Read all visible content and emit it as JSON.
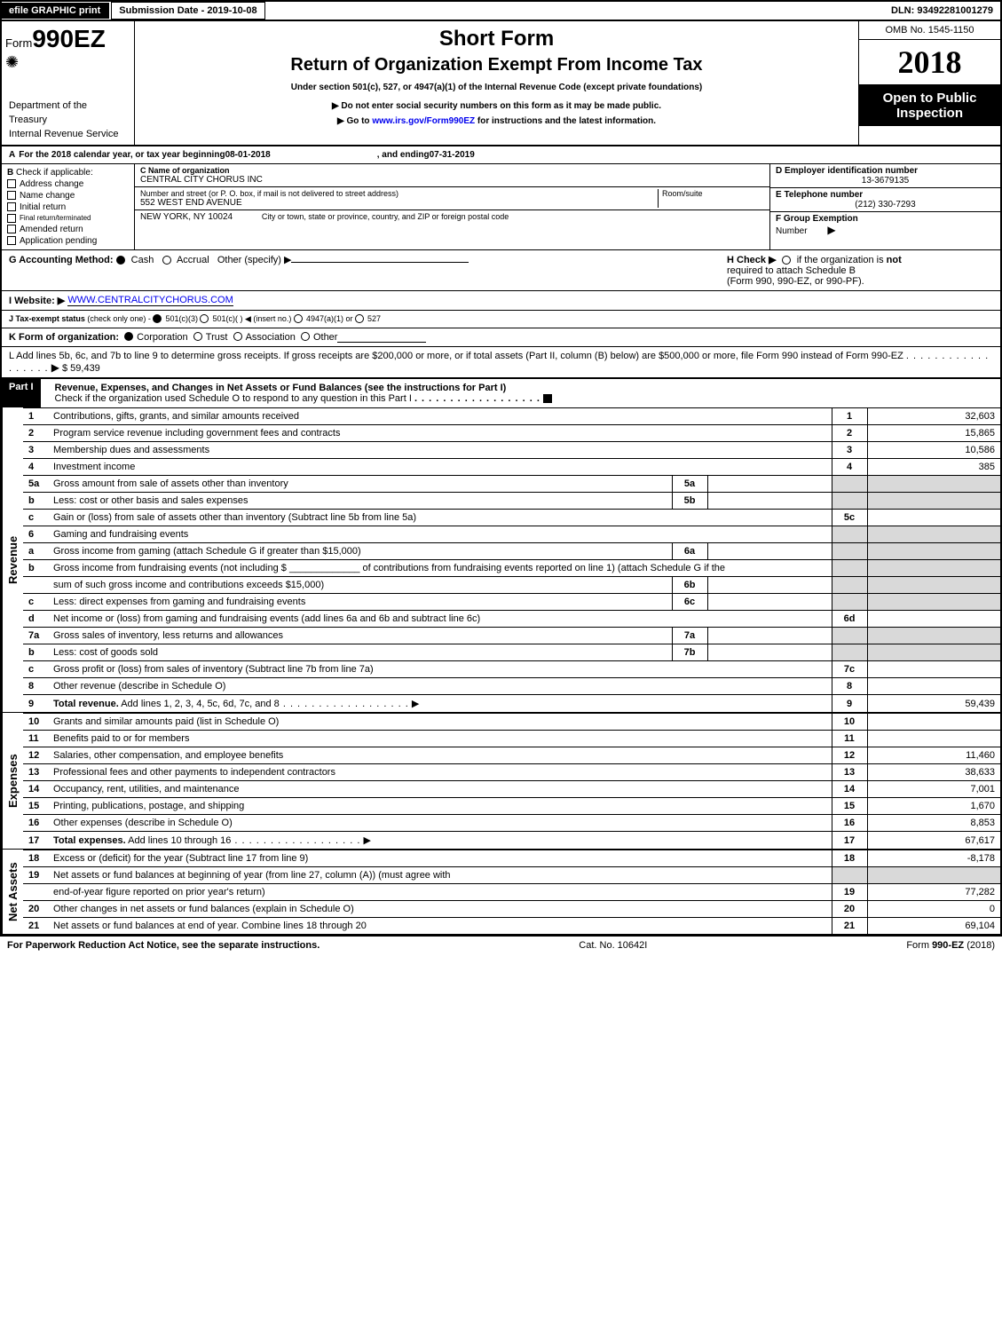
{
  "topbar": {
    "efile": "efile GRAPHIC print",
    "sub_date_label": "Submission Date - 2019-10-08",
    "dln": "DLN: 93492281001279"
  },
  "header": {
    "form_prefix": "Form",
    "form_no": "990EZ",
    "short_form": "Short Form",
    "title": "Return of Organization Exempt From Income Tax",
    "subtitle": "Under section 501(c), 527, or 4947(a)(1) of the Internal Revenue Code (except private foundations)",
    "note1": "▶ Do not enter social security numbers on this form as it may be made public.",
    "note2": "▶ Go to www.irs.gov/Form990EZ for instructions and the latest information.",
    "note2_url": "www.irs.gov/Form990EZ",
    "dept1": "Department of the",
    "dept2": "Treasury",
    "dept3": "Internal Revenue Service",
    "omb": "OMB No. 1545-1150",
    "year": "2018",
    "open_public_1": "Open to Public",
    "open_public_2": "Inspection"
  },
  "line_A": {
    "label_pre": "For the 2018 calendar year, or tax year beginning ",
    "begin": "08-01-2018",
    "mid": ", and ending ",
    "end": "07-31-2019"
  },
  "B": {
    "heading": "Check if applicable:",
    "items": [
      "Address change",
      "Name change",
      "Initial return",
      "Final return/terminated",
      "Amended return",
      "Application pending"
    ]
  },
  "C": {
    "label": "C Name of organization",
    "name": "CENTRAL CITY CHORUS INC",
    "addr_label": "Number and street (or P. O. box, if mail is not delivered to street address)",
    "room_label": "Room/suite",
    "addr": "552 WEST END AVENUE",
    "city_label": "City or town, state or province, country, and ZIP or foreign postal code",
    "city": "NEW YORK, NY  10024"
  },
  "D": {
    "label": "D Employer identification number",
    "value": "13-3679135"
  },
  "E": {
    "label": "E Telephone number",
    "value": "(212) 330-7293"
  },
  "F": {
    "label": "F Group Exemption",
    "label2": "Number",
    "arrow": "▶"
  },
  "G": {
    "label": "G Accounting Method:",
    "cash": "Cash",
    "accrual": "Accrual",
    "other": "Other (specify) ▶"
  },
  "H": {
    "label_pre": "H   Check ▶",
    "text1": "if the organization is",
    "text_not": "not",
    "text2": "required to attach Schedule B",
    "text3": "(Form 990, 990-EZ, or 990-PF)."
  },
  "I": {
    "label": "I Website: ▶",
    "value": "WWW.CENTRALCITYCHORUS.COM"
  },
  "J": {
    "label": "J Tax-exempt status",
    "note": "(check only one) -",
    "opts": [
      "501(c)(3)",
      "501(c)(  ) ◀ (insert no.)",
      "4947(a)(1) or",
      "527"
    ]
  },
  "K": {
    "label": "K Form of organization:",
    "opts": [
      "Corporation",
      "Trust",
      "Association",
      "Other"
    ]
  },
  "L": {
    "text": "L Add lines 5b, 6c, and 7b to line 9 to determine gross receipts. If gross receipts are $200,000 or more, or if total assets (Part II, column (B) below) are $500,000 or more, file Form 990 instead of Form 990-EZ",
    "arrow": "▶",
    "amount": "$ 59,439"
  },
  "part1": {
    "label": "Part I",
    "title": "Revenue, Expenses, and Changes in Net Assets or Fund Balances (see the instructions for Part I)",
    "check_text": "Check if the organization used Schedule O to respond to any question in this Part I",
    "checked": true
  },
  "side_labels": {
    "revenue": "Revenue",
    "expenses": "Expenses",
    "net": "Net Assets"
  },
  "lines": [
    {
      "no": "1",
      "desc": "Contributions, gifts, grants, and similar amounts received",
      "box": "1",
      "amt": "32,603"
    },
    {
      "no": "2",
      "desc": "Program service revenue including government fees and contracts",
      "box": "2",
      "amt": "15,865"
    },
    {
      "no": "3",
      "desc": "Membership dues and assessments",
      "box": "3",
      "amt": "10,586"
    },
    {
      "no": "4",
      "desc": "Investment income",
      "box": "4",
      "amt": "385"
    },
    {
      "no": "5a",
      "desc": "Gross amount from sale of assets other than inventory",
      "sub": "5a",
      "box_grey": true
    },
    {
      "no": "b",
      "desc": "Less: cost or other basis and sales expenses",
      "sub": "5b",
      "box_grey": true
    },
    {
      "no": "c",
      "desc": "Gain or (loss) from sale of assets other than inventory (Subtract line 5b from line 5a)",
      "box": "5c",
      "amt": ""
    },
    {
      "no": "6",
      "desc": "Gaming and fundraising events",
      "box_grey": true,
      "no_box": true
    },
    {
      "no": "a",
      "desc": "Gross income from gaming (attach Schedule G if greater than $15,000)",
      "sub": "6a",
      "box_grey": true
    },
    {
      "no": "b",
      "desc": "Gross income from fundraising events (not including $ _____________ of contributions from fundraising events reported on line 1) (attach Schedule G if the",
      "box_grey": true,
      "no_box": true,
      "no_sub": true
    },
    {
      "no": "",
      "desc": "sum of such gross income and contributions exceeds $15,000)",
      "sub": "6b",
      "box_grey": true
    },
    {
      "no": "c",
      "desc": "Less: direct expenses from gaming and fundraising events",
      "sub": "6c",
      "box_grey": true
    },
    {
      "no": "d",
      "desc": "Net income or (loss) from gaming and fundraising events (add lines 6a and 6b and subtract line 6c)",
      "box": "6d",
      "amt": ""
    },
    {
      "no": "7a",
      "desc": "Gross sales of inventory, less returns and allowances",
      "sub": "7a",
      "box_grey": true
    },
    {
      "no": "b",
      "desc": "Less: cost of goods sold",
      "sub": "7b",
      "box_grey": true
    },
    {
      "no": "c",
      "desc": "Gross profit or (loss) from sales of inventory (Subtract line 7b from line 7a)",
      "box": "7c",
      "amt": ""
    },
    {
      "no": "8",
      "desc": "Other revenue (describe in Schedule O)",
      "box": "8",
      "amt": ""
    },
    {
      "no": "9",
      "desc": "Total revenue. Add lines 1, 2, 3, 4, 5c, 6d, 7c, and 8",
      "bold": true,
      "arrow": true,
      "box": "9",
      "amt": "59,439"
    }
  ],
  "exp_lines": [
    {
      "no": "10",
      "desc": "Grants and similar amounts paid (list in Schedule O)",
      "box": "10",
      "amt": ""
    },
    {
      "no": "11",
      "desc": "Benefits paid to or for members",
      "box": "11",
      "amt": ""
    },
    {
      "no": "12",
      "desc": "Salaries, other compensation, and employee benefits",
      "box": "12",
      "amt": "11,460"
    },
    {
      "no": "13",
      "desc": "Professional fees and other payments to independent contractors",
      "box": "13",
      "amt": "38,633"
    },
    {
      "no": "14",
      "desc": "Occupancy, rent, utilities, and maintenance",
      "box": "14",
      "amt": "7,001"
    },
    {
      "no": "15",
      "desc": "Printing, publications, postage, and shipping",
      "box": "15",
      "amt": "1,670"
    },
    {
      "no": "16",
      "desc": "Other expenses (describe in Schedule O)",
      "box": "16",
      "amt": "8,853"
    },
    {
      "no": "17",
      "desc": "Total expenses. Add lines 10 through 16",
      "bold": true,
      "arrow": true,
      "box": "17",
      "amt": "67,617"
    }
  ],
  "net_lines": [
    {
      "no": "18",
      "desc": "Excess or (deficit) for the year (Subtract line 17 from line 9)",
      "box": "18",
      "amt": "-8,178"
    },
    {
      "no": "19",
      "desc": "Net assets or fund balances at beginning of year (from line 27, column (A)) (must agree with",
      "box_grey": true,
      "no_box": true
    },
    {
      "no": "",
      "desc": "end-of-year figure reported on prior year's return)",
      "box": "19",
      "amt": "77,282"
    },
    {
      "no": "20",
      "desc": "Other changes in net assets or fund balances (explain in Schedule O)",
      "box": "20",
      "amt": "0"
    },
    {
      "no": "21",
      "desc": "Net assets or fund balances at end of year. Combine lines 18 through 20",
      "box": "21",
      "amt": "69,104"
    }
  ],
  "footer": {
    "left": "For Paperwork Reduction Act Notice, see the separate instructions.",
    "center": "Cat. No. 10642I",
    "right": "Form 990-EZ (2018)",
    "right_bold": "990-EZ"
  }
}
